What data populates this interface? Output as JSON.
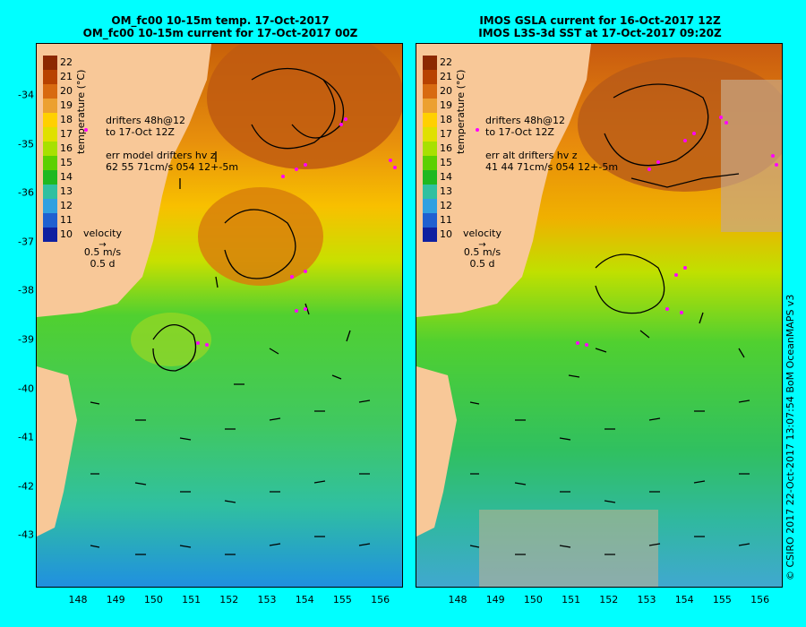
{
  "left_panel": {
    "title_line1": "OM_fc00 10-15m temp. 17-Oct-2017",
    "title_line2": "OM_fc00 10-15m current for 17-Oct-2017 00Z",
    "drifters_line1": "drifters 48h@12",
    "drifters_line2": "to 17-Oct 12Z",
    "err_line1": "err model drifters hv z",
    "err_line2": "62 55 71cm/s 054 12+-5m"
  },
  "right_panel": {
    "title_line1": "IMOS GSLA current for 16-Oct-2017 12Z",
    "title_line2": "IMOS L3S-3d SST at 17-Oct-2017 09:20Z",
    "drifters_line1": "drifters 48h@12",
    "drifters_line2": "to 17-Oct 12Z",
    "err_line1": "err alt drifters hv z",
    "err_line2": "41 44 71cm/s 054 12+-5m"
  },
  "colorbar": {
    "label": "temperature (°C)",
    "ticks": [
      "22",
      "21",
      "20",
      "19",
      "18",
      "17",
      "16",
      "15",
      "14",
      "13",
      "12",
      "11",
      "10"
    ],
    "colors": [
      "#8c2800",
      "#b84200",
      "#d86a10",
      "#eca030",
      "#ffd000",
      "#e0e000",
      "#a8e000",
      "#5cd000",
      "#20b820",
      "#30c0a0",
      "#30a0e0",
      "#2060d0",
      "#1020a0"
    ]
  },
  "velocity_legend": {
    "title": "velocity",
    "speed": "0.5 m/s",
    "duration": "0.5 d"
  },
  "axes": {
    "lat_labels": [
      "-34",
      "-35",
      "-36",
      "-37",
      "-38",
      "-39",
      "-40",
      "-41",
      "-42",
      "-43"
    ],
    "lon_labels": [
      "148",
      "149",
      "150",
      "151",
      "152",
      "153",
      "154",
      "155",
      "156"
    ]
  },
  "credit": "© CSIRO 2017   22-Oct-2017 13:07:54 BoM OceanMAPS v3",
  "colors": {
    "background": "#00ffff",
    "land": "#f8c898",
    "drifter": "#ff00ff"
  }
}
